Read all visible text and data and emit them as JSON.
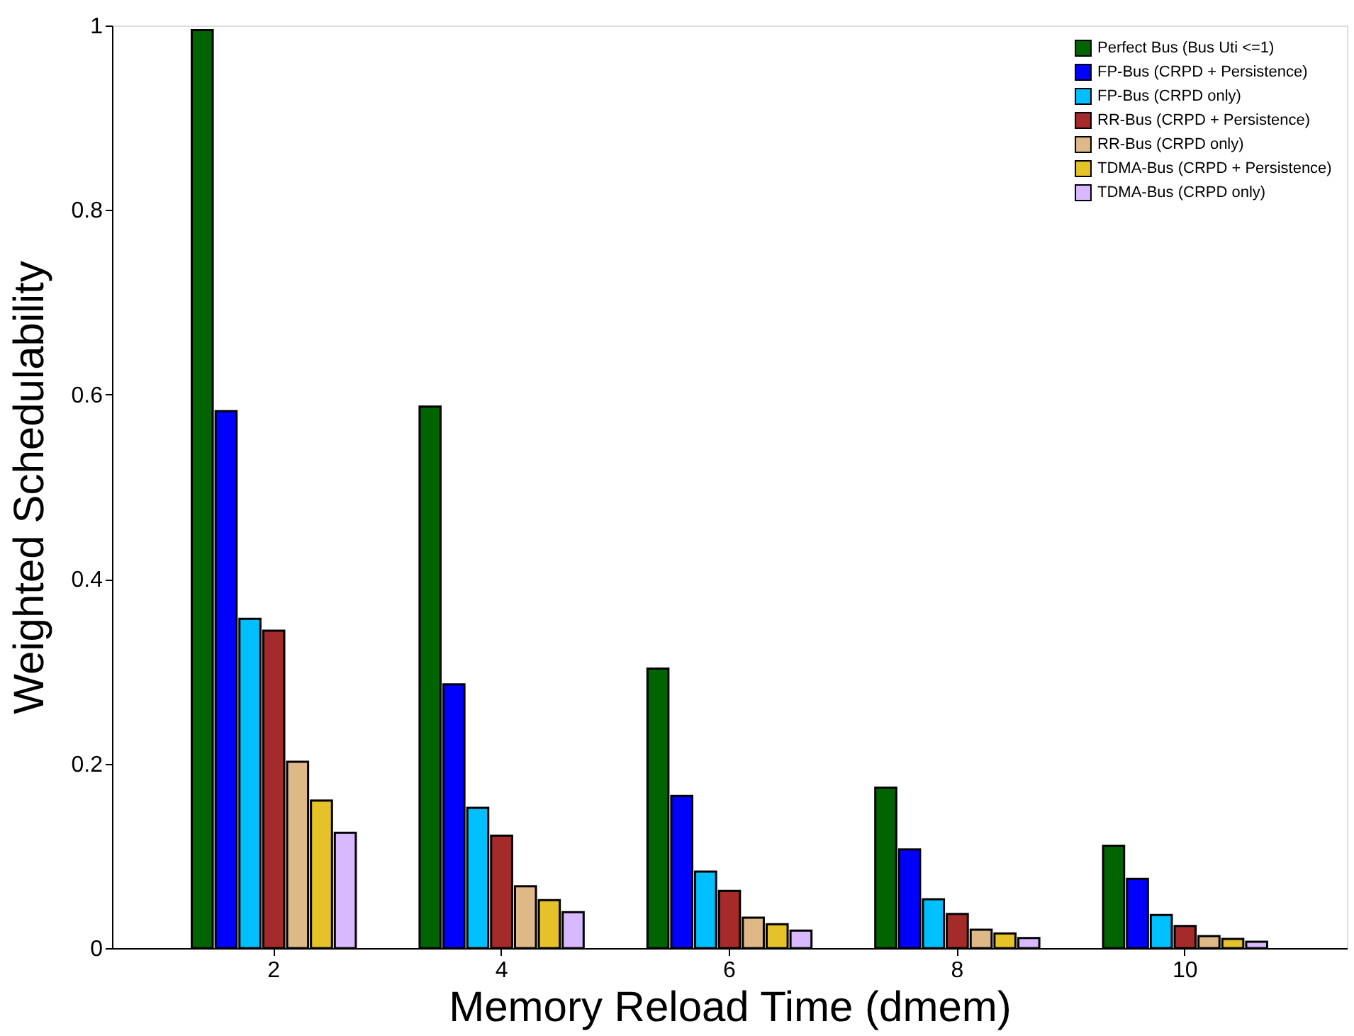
{
  "chart_data": {
    "type": "bar",
    "xlabel": "Memory Reload Time (dmem)",
    "ylabel": "Weighted Schedulability",
    "categories": [
      "2",
      "4",
      "6",
      "8",
      "10"
    ],
    "series": [
      {
        "name": "Perfect Bus (Bus Uti <=1)",
        "color": "#006400",
        "values": [
          0.995,
          0.587,
          0.303,
          0.174,
          0.111
        ]
      },
      {
        "name": "FP-Bus (CRPD + Persistence)",
        "color": "#0000ff",
        "values": [
          0.582,
          0.286,
          0.165,
          0.107,
          0.075
        ]
      },
      {
        "name": "FP-Bus (CRPD only)",
        "color": "#00bfff",
        "values": [
          0.357,
          0.152,
          0.083,
          0.053,
          0.036
        ]
      },
      {
        "name": "RR-Bus (CRPD + Persistence)",
        "color": "#a52a2a",
        "values": [
          0.344,
          0.122,
          0.062,
          0.037,
          0.024
        ]
      },
      {
        "name": "RR-Bus (CRPD only)",
        "color": "#deb887",
        "values": [
          0.202,
          0.067,
          0.033,
          0.02,
          0.013
        ]
      },
      {
        "name": "TDMA-Bus (CRPD + Persistence)",
        "color": "#e6c229",
        "values": [
          0.16,
          0.052,
          0.026,
          0.016,
          0.01
        ]
      },
      {
        "name": "TDMA-Bus (CRPD only)",
        "color": "#d8b8ff",
        "values": [
          0.125,
          0.039,
          0.019,
          0.011,
          0.007
        ]
      }
    ],
    "ylim": [
      0,
      1
    ],
    "yticks": [
      0,
      0.2,
      0.4,
      0.6,
      0.8,
      1
    ],
    "grid": false,
    "legend": "top right"
  }
}
